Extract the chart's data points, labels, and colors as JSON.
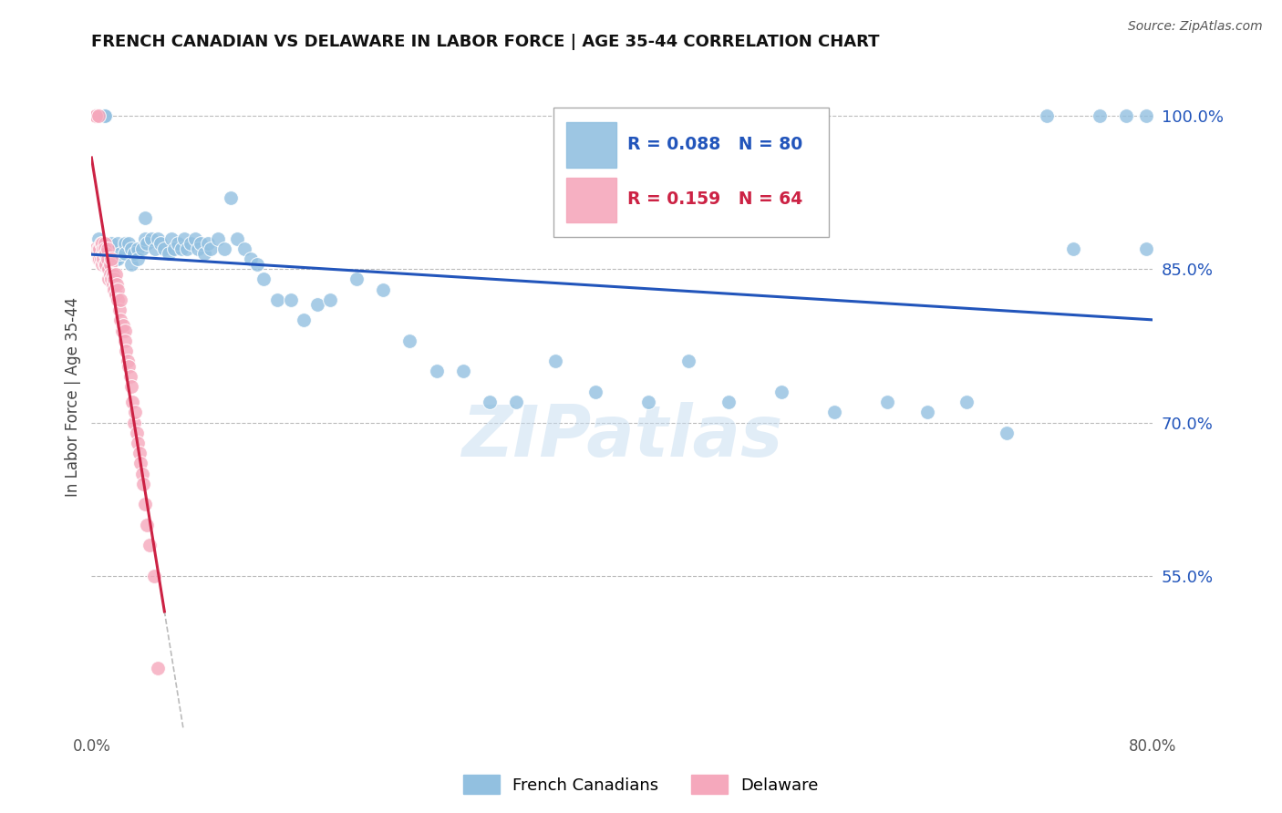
{
  "title": "FRENCH CANADIAN VS DELAWARE IN LABOR FORCE | AGE 35-44 CORRELATION CHART",
  "source": "Source: ZipAtlas.com",
  "ylabel": "In Labor Force | Age 35-44",
  "xlim": [
    0.0,
    0.8
  ],
  "ylim": [
    0.4,
    1.05
  ],
  "xticks": [
    0.0,
    0.1,
    0.2,
    0.3,
    0.4,
    0.5,
    0.6,
    0.7,
    0.8
  ],
  "yticks_right": [
    0.55,
    0.7,
    0.85,
    1.0
  ],
  "yticklabels_right": [
    "55.0%",
    "70.0%",
    "85.0%",
    "100.0%"
  ],
  "legend_blue_label": "French Canadians",
  "legend_pink_label": "Delaware",
  "R_blue": 0.088,
  "N_blue": 80,
  "R_pink": 0.159,
  "N_pink": 64,
  "blue_color": "#92C0E0",
  "pink_color": "#F5A8BC",
  "blue_line_color": "#2255BB",
  "pink_line_color": "#CC2244",
  "watermark": "ZIPatlas",
  "blue_x": [
    0.005,
    0.005,
    0.01,
    0.01,
    0.01,
    0.012,
    0.015,
    0.015,
    0.018,
    0.02,
    0.02,
    0.022,
    0.025,
    0.025,
    0.028,
    0.03,
    0.03,
    0.032,
    0.035,
    0.035,
    0.038,
    0.04,
    0.04,
    0.042,
    0.045,
    0.048,
    0.05,
    0.052,
    0.055,
    0.058,
    0.06,
    0.062,
    0.065,
    0.068,
    0.07,
    0.072,
    0.075,
    0.078,
    0.08,
    0.082,
    0.085,
    0.088,
    0.09,
    0.095,
    0.1,
    0.105,
    0.11,
    0.115,
    0.12,
    0.125,
    0.13,
    0.14,
    0.15,
    0.16,
    0.17,
    0.18,
    0.2,
    0.22,
    0.24,
    0.26,
    0.28,
    0.3,
    0.32,
    0.35,
    0.38,
    0.42,
    0.45,
    0.48,
    0.52,
    0.56,
    0.6,
    0.63,
    0.66,
    0.69,
    0.72,
    0.74,
    0.76,
    0.78,
    0.795,
    0.795
  ],
  "blue_y": [
    0.88,
    0.87,
    1.0,
    1.0,
    0.87,
    0.86,
    0.87,
    0.875,
    0.86,
    0.875,
    0.86,
    0.865,
    0.875,
    0.865,
    0.875,
    0.87,
    0.855,
    0.865,
    0.87,
    0.86,
    0.87,
    0.9,
    0.88,
    0.875,
    0.88,
    0.87,
    0.88,
    0.875,
    0.87,
    0.865,
    0.88,
    0.87,
    0.875,
    0.87,
    0.88,
    0.87,
    0.875,
    0.88,
    0.87,
    0.875,
    0.865,
    0.875,
    0.87,
    0.88,
    0.87,
    0.92,
    0.88,
    0.87,
    0.86,
    0.855,
    0.84,
    0.82,
    0.82,
    0.8,
    0.815,
    0.82,
    0.84,
    0.83,
    0.78,
    0.75,
    0.75,
    0.72,
    0.72,
    0.76,
    0.73,
    0.72,
    0.76,
    0.72,
    0.73,
    0.71,
    0.72,
    0.71,
    0.72,
    0.69,
    1.0,
    0.87,
    1.0,
    1.0,
    1.0,
    0.87
  ],
  "pink_x": [
    0.003,
    0.003,
    0.003,
    0.005,
    0.005,
    0.005,
    0.006,
    0.006,
    0.007,
    0.007,
    0.008,
    0.008,
    0.008,
    0.009,
    0.009,
    0.01,
    0.01,
    0.01,
    0.01,
    0.011,
    0.011,
    0.012,
    0.012,
    0.013,
    0.013,
    0.014,
    0.014,
    0.015,
    0.015,
    0.016,
    0.016,
    0.017,
    0.017,
    0.018,
    0.018,
    0.019,
    0.02,
    0.02,
    0.021,
    0.022,
    0.022,
    0.023,
    0.024,
    0.025,
    0.025,
    0.026,
    0.027,
    0.028,
    0.029,
    0.03,
    0.031,
    0.032,
    0.033,
    0.034,
    0.035,
    0.036,
    0.037,
    0.038,
    0.039,
    0.04,
    0.042,
    0.044,
    0.047,
    0.05
  ],
  "pink_y": [
    1.0,
    1.0,
    0.87,
    1.0,
    0.87,
    0.86,
    0.87,
    0.86,
    0.875,
    0.86,
    0.875,
    0.865,
    0.855,
    0.87,
    0.86,
    0.875,
    0.865,
    0.855,
    0.87,
    0.865,
    0.855,
    0.87,
    0.86,
    0.85,
    0.84,
    0.855,
    0.845,
    0.86,
    0.84,
    0.845,
    0.835,
    0.84,
    0.83,
    0.845,
    0.825,
    0.835,
    0.83,
    0.82,
    0.81,
    0.82,
    0.8,
    0.79,
    0.795,
    0.79,
    0.78,
    0.77,
    0.76,
    0.755,
    0.745,
    0.735,
    0.72,
    0.7,
    0.71,
    0.69,
    0.68,
    0.67,
    0.66,
    0.65,
    0.64,
    0.62,
    0.6,
    0.58,
    0.55,
    0.46
  ]
}
